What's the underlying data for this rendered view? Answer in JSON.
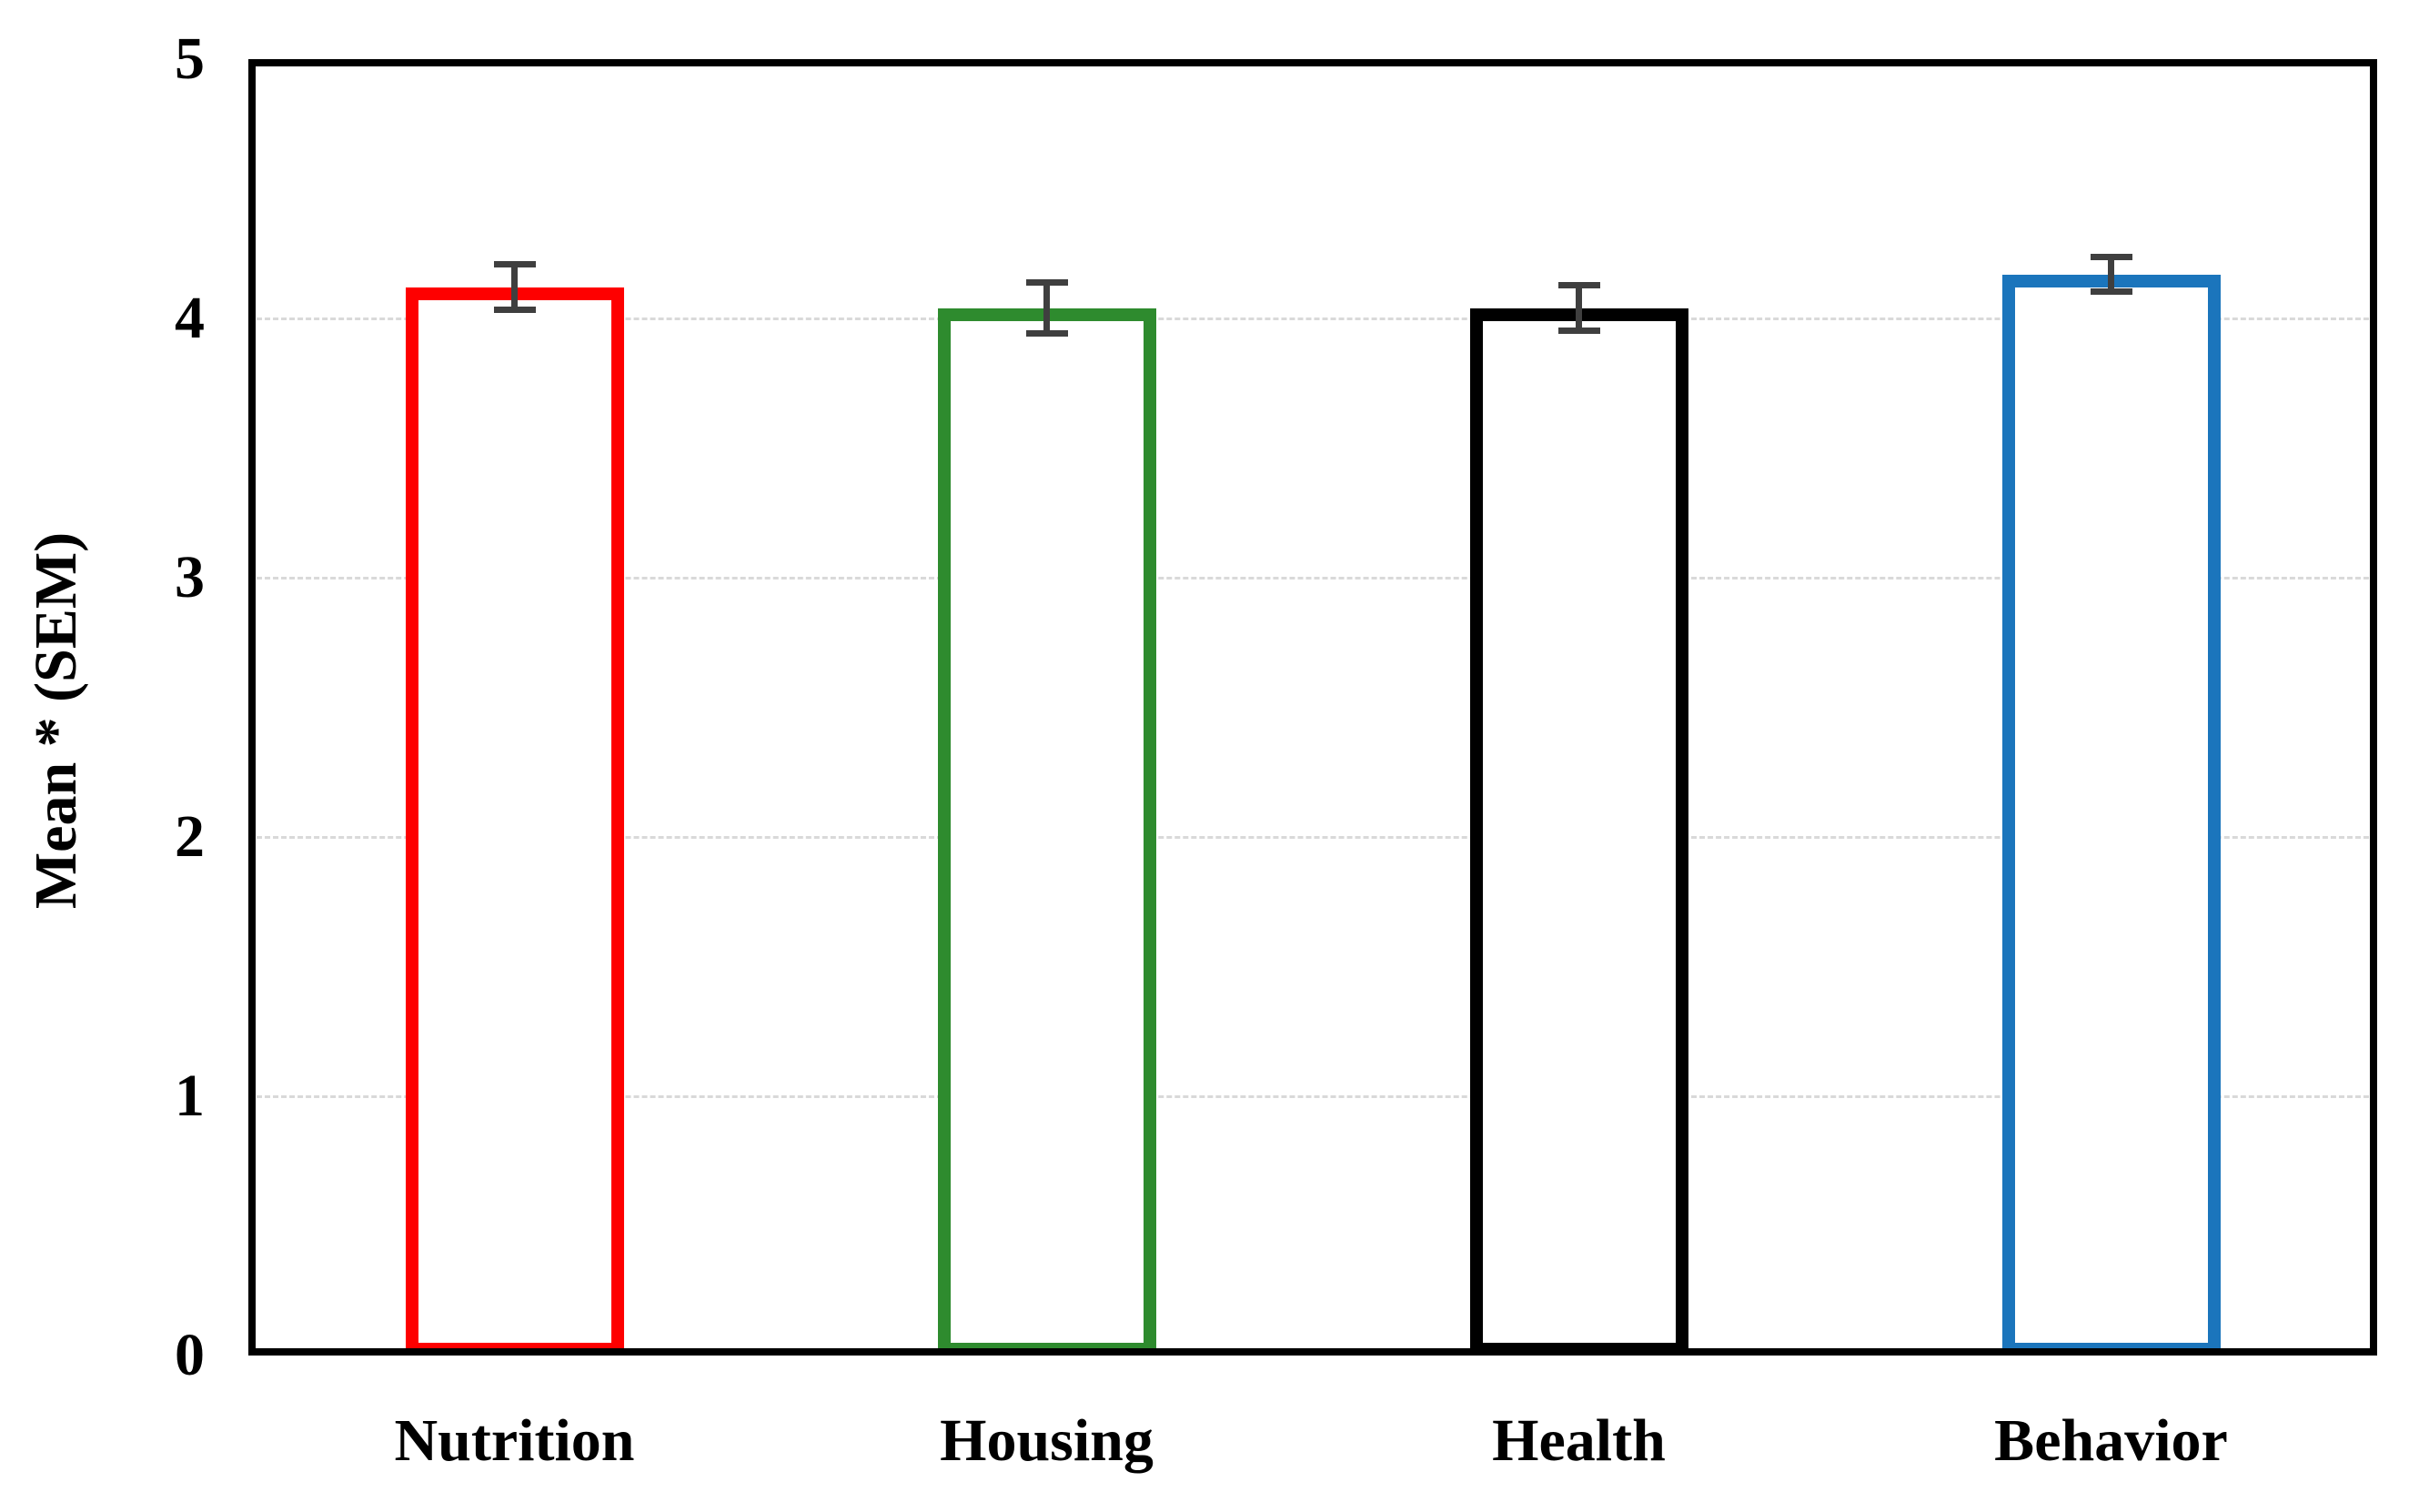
{
  "chart_data": {
    "type": "bar",
    "title": "",
    "xlabel": "",
    "ylabel": "Mean * (SEM)",
    "categories": [
      "Nutrition",
      "Housing",
      "Health",
      "Behavior"
    ],
    "values": [
      4.12,
      4.04,
      4.04,
      4.17
    ],
    "sem": [
      0.1,
      0.11,
      0.1,
      0.08
    ],
    "bar_fill": "#ffffff",
    "bar_outline_colors": [
      "#fe0000",
      "#2e8b2e",
      "#000000",
      "#1b75bc"
    ],
    "error_bar_color": "#3f3f3f",
    "gridline_color": "#d9d9d9",
    "gridline_style": "dashed",
    "axis_color": "#000000",
    "ylim": [
      0,
      5
    ],
    "yticks": [
      0,
      1,
      2,
      3,
      4,
      5
    ],
    "legend": "none",
    "grid": "horizontal"
  }
}
